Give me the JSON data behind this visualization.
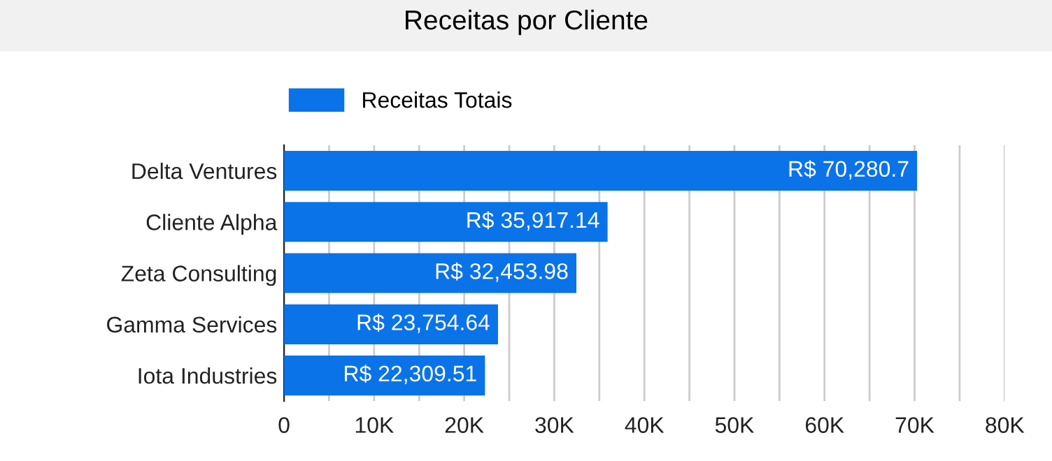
{
  "chart_data": {
    "type": "bar",
    "orientation": "horizontal",
    "title": "Receitas por Cliente",
    "categories": [
      "Delta Ventures",
      "Cliente Alpha",
      "Zeta Consulting",
      "Gamma Services",
      "Iota Industries"
    ],
    "series": [
      {
        "name": "Receitas Totais",
        "color": "#0b73e8",
        "values": [
          70280.7,
          35917.14,
          32453.98,
          23754.64,
          22309.51
        ],
        "value_labels": [
          "R$ 70,280.7",
          "R$ 35,917.14",
          "R$ 32,453.98",
          "R$ 23,754.64",
          "R$ 22,309.51"
        ]
      }
    ],
    "xlim": [
      0,
      80000
    ],
    "xticks": [
      0,
      {
        "value": 5000,
        "label": null
      },
      {
        "value": 10000,
        "label": "10K"
      },
      {
        "value": 15000,
        "label": null
      },
      {
        "value": 20000,
        "label": "20K"
      },
      {
        "value": 25000,
        "label": null
      },
      {
        "value": 30000,
        "label": "30K"
      },
      {
        "value": 35000,
        "label": null
      },
      {
        "value": 40000,
        "label": "40K"
      },
      {
        "value": 45000,
        "label": null
      },
      {
        "value": 50000,
        "label": "50K"
      },
      {
        "value": 55000,
        "label": null
      },
      {
        "value": 60000,
        "label": "60K"
      },
      {
        "value": 65000,
        "label": null
      },
      {
        "value": 70000,
        "label": "70K"
      },
      {
        "value": 75000,
        "label": null
      },
      {
        "value": 80000,
        "label": "80K"
      }
    ],
    "grid": "x",
    "legend": "top left"
  }
}
